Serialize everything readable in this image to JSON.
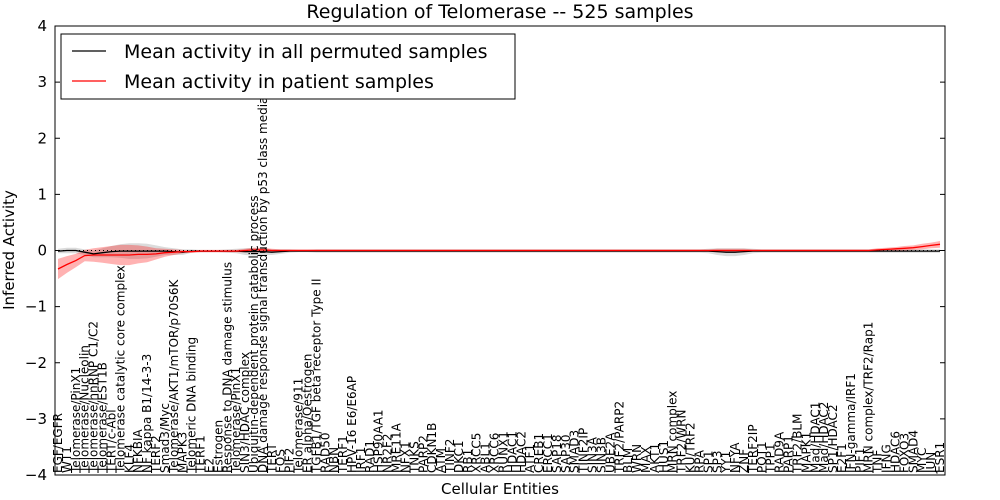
{
  "chart_data": {
    "type": "line",
    "title": "Regulation of Telomerase -- 525 samples",
    "xlabel": "Cellular Entities",
    "ylabel": "Inferred Activity",
    "ylim": [
      -4,
      4
    ],
    "yticks": [
      "−4",
      "−3",
      "−2",
      "−1",
      "0",
      "1",
      "2",
      "3",
      "4"
    ],
    "ytick_values": [
      -4,
      -3,
      -2,
      -1,
      0,
      1,
      2,
      3,
      4
    ],
    "grid": false,
    "legend_position": "upper-left",
    "categories": [
      "EGF/EGFR",
      "WT1",
      "Telomerase/PinX1",
      "Telomerase/Nucleolin",
      "Telomerase/hnRNP C1/C2",
      "Telomerase/EST1B",
      "TERT/c-Abl",
      "Telomerase catalytic core complex",
      "KLF4",
      "NFKBIA",
      "NF kappa B1/14-3-3",
      "TERF2",
      "Smad3/Myc",
      "Telomerase/AKT1/mTOR/p70S6K",
      "MAPK3",
      "Telomeric DNA binding",
      "TERF1",
      "E2",
      "Estrogen",
      "Response to DNA damage stimulus",
      "Telomerase/PinX1",
      "SIN3/HDAC complex",
      "Ubiquitin-dependent protein catabolic process",
      "DNA damage response signal transduction by p53 class mediator",
      "TERT",
      "FOS",
      "PIF2",
      "Telomerase/911",
      "ER alpha/Oestrogen",
      "TGFB1/TGF beta receptor Type II",
      "RAD50",
      "NBN",
      "TERF1",
      "HPV-16 E6/E6AP",
      "IRF1",
      "RAD1",
      "HSP90AA1",
      "NR2F2",
      "MRE11A",
      "NFX1",
      "TNKS",
      "PARP2",
      "CDKN1B",
      "ATM",
      "TINF2",
      "DKC1",
      "RB1",
      "XRCC5",
      "ABL1",
      "XRCC6",
      "RUNX1",
      "HDAC1",
      "HDAC2",
      "ATF1",
      "CREB1",
      "ERCC1",
      "SAP18",
      "SAP30",
      "SMAD3",
      "TINF2IP",
      "SIN3A",
      "SIN3B",
      "UBE2A",
      "TRF2/PARP2",
      "BLM",
      "WRN",
      "MAX",
      "AKT1",
      "HUS1",
      "MRN complex",
      "TRF2/WRN",
      "KU/TRF2",
      "RPA",
      "SP1",
      "SP3",
      "YY1",
      "NFYA",
      "ZNF",
      "TERF2IP",
      "POT1",
      "TPP1",
      "RAD9A",
      "PARP1",
      "TRF2/BLM",
      "MAPK1",
      "Mad/HDAC1",
      "Mad/HDAC2",
      "SP1/HDAC2",
      "E2F1",
      "IFN-gamma/IRF1",
      "PIF1",
      "MRN complex/TRF2/Rap1",
      "TNF",
      "IFNG",
      "HDAC6",
      "FOXO3",
      "SMAD4",
      "MYC",
      "JUN",
      "ESR1"
    ],
    "series": [
      {
        "name": "Mean activity in all permuted samples",
        "color": "#000000",
        "values": [
          -0.01,
          0.0,
          0.0,
          -0.03,
          -0.06,
          -0.04,
          -0.02,
          -0.01,
          -0.01,
          -0.01,
          -0.01,
          -0.01,
          -0.01,
          -0.02,
          -0.03,
          -0.01,
          -0.01,
          -0.01,
          -0.01,
          -0.01,
          -0.01,
          -0.02,
          -0.02,
          -0.02,
          -0.03,
          -0.02,
          -0.01,
          -0.01,
          -0.01,
          -0.01,
          -0.01,
          -0.01,
          -0.01,
          -0.01,
          -0.01,
          -0.01,
          -0.01,
          -0.01,
          -0.01,
          -0.01,
          -0.01,
          -0.01,
          -0.01,
          -0.01,
          -0.01,
          -0.01,
          -0.01,
          -0.01,
          -0.01,
          -0.01,
          -0.01,
          -0.01,
          -0.01,
          -0.01,
          -0.01,
          -0.01,
          -0.01,
          -0.01,
          -0.01,
          -0.01,
          -0.01,
          -0.01,
          -0.01,
          -0.01,
          -0.01,
          -0.01,
          -0.01,
          -0.01,
          -0.01,
          -0.01,
          -0.01,
          -0.01,
          -0.01,
          -0.01,
          -0.02,
          -0.03,
          -0.03,
          -0.02,
          -0.01,
          -0.01,
          -0.01,
          -0.01,
          -0.01,
          -0.01,
          -0.01,
          -0.01,
          -0.01,
          -0.01,
          -0.01,
          -0.01,
          -0.01,
          -0.01,
          -0.01,
          -0.01,
          -0.01,
          -0.01,
          -0.01,
          -0.01,
          -0.01,
          -0.01
        ]
      },
      {
        "name": "Mean activity in patient samples",
        "color": "#ff0000",
        "values": [
          -0.33,
          -0.25,
          -0.18,
          -0.09,
          -0.08,
          -0.08,
          -0.08,
          -0.08,
          -0.08,
          -0.07,
          -0.07,
          -0.06,
          -0.04,
          -0.03,
          -0.02,
          -0.02,
          -0.01,
          -0.01,
          -0.01,
          -0.01,
          -0.01,
          0.0,
          0.01,
          0.01,
          0.0,
          0.0,
          0.0,
          0.0,
          0.0,
          0.0,
          0.0,
          0.0,
          0.0,
          0.0,
          0.0,
          0.0,
          0.0,
          0.0,
          0.0,
          0.0,
          0.0,
          0.0,
          0.0,
          0.0,
          0.0,
          0.0,
          0.0,
          0.0,
          0.0,
          0.0,
          0.0,
          0.0,
          0.0,
          0.0,
          0.0,
          0.0,
          0.0,
          0.0,
          0.0,
          0.0,
          0.0,
          0.0,
          0.0,
          0.0,
          0.0,
          0.0,
          0.0,
          0.0,
          0.0,
          0.0,
          0.0,
          0.0,
          0.0,
          0.0,
          0.0,
          0.0,
          0.0,
          0.0,
          0.0,
          0.0,
          0.0,
          0.0,
          0.0,
          0.0,
          0.0,
          0.0,
          0.0,
          0.0,
          0.0,
          0.0,
          0.0,
          0.0,
          0.01,
          0.02,
          0.03,
          0.04,
          0.05,
          0.07,
          0.09,
          0.11
        ]
      }
    ],
    "bands": {
      "permuted_half_width": [
        0.04,
        0.05,
        0.05,
        0.05,
        0.06,
        0.08,
        0.1,
        0.12,
        0.14,
        0.14,
        0.13,
        0.1,
        0.07,
        0.06,
        0.05,
        0.03,
        0.02,
        0.02,
        0.02,
        0.03,
        0.04,
        0.06,
        0.07,
        0.06,
        0.05,
        0.04,
        0.03,
        0.02,
        0.02,
        0.03,
        0.03,
        0.03,
        0.03,
        0.03,
        0.03,
        0.03,
        0.03,
        0.03,
        0.03,
        0.03,
        0.03,
        0.03,
        0.03,
        0.03,
        0.03,
        0.03,
        0.03,
        0.03,
        0.03,
        0.03,
        0.03,
        0.03,
        0.03,
        0.03,
        0.03,
        0.03,
        0.03,
        0.03,
        0.03,
        0.03,
        0.03,
        0.03,
        0.03,
        0.03,
        0.03,
        0.03,
        0.03,
        0.03,
        0.03,
        0.03,
        0.03,
        0.03,
        0.03,
        0.04,
        0.06,
        0.07,
        0.07,
        0.06,
        0.04,
        0.03,
        0.03,
        0.03,
        0.03,
        0.03,
        0.03,
        0.03,
        0.03,
        0.03,
        0.03,
        0.03,
        0.03,
        0.03,
        0.03,
        0.03,
        0.03,
        0.03,
        0.03,
        0.03,
        0.03,
        0.03
      ],
      "patient_half_width": [
        0.18,
        0.15,
        0.12,
        0.1,
        0.12,
        0.14,
        0.16,
        0.18,
        0.18,
        0.16,
        0.14,
        0.1,
        0.07,
        0.05,
        0.03,
        0.02,
        0.02,
        0.02,
        0.02,
        0.02,
        0.02,
        0.03,
        0.04,
        0.04,
        0.03,
        0.02,
        0.02,
        0.02,
        0.02,
        0.02,
        0.02,
        0.02,
        0.02,
        0.02,
        0.02,
        0.02,
        0.02,
        0.02,
        0.02,
        0.02,
        0.02,
        0.02,
        0.02,
        0.02,
        0.02,
        0.02,
        0.02,
        0.02,
        0.02,
        0.02,
        0.02,
        0.02,
        0.02,
        0.02,
        0.02,
        0.02,
        0.02,
        0.02,
        0.02,
        0.02,
        0.02,
        0.02,
        0.02,
        0.02,
        0.02,
        0.02,
        0.02,
        0.02,
        0.02,
        0.02,
        0.02,
        0.02,
        0.02,
        0.02,
        0.03,
        0.03,
        0.03,
        0.03,
        0.02,
        0.02,
        0.02,
        0.02,
        0.02,
        0.02,
        0.02,
        0.02,
        0.02,
        0.02,
        0.02,
        0.02,
        0.02,
        0.02,
        0.03,
        0.03,
        0.03,
        0.04,
        0.04,
        0.05,
        0.05,
        0.06
      ]
    }
  }
}
